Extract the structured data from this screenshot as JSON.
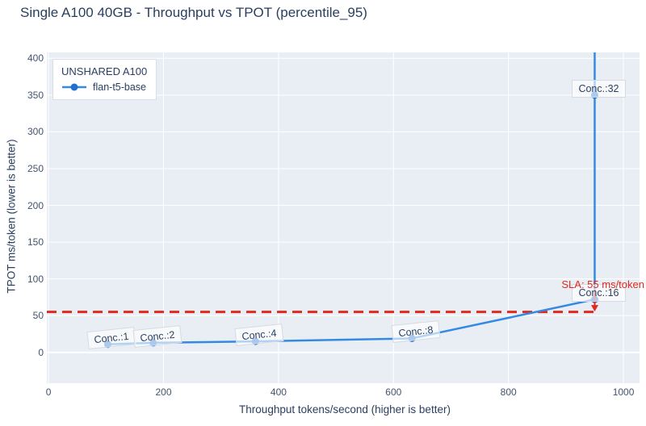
{
  "chart_data": {
    "type": "line",
    "title": "Single A100 40GB - Throughput vs TPOT (percentile_95)",
    "xlabel": "Throughput tokens/second (higher is better)",
    "ylabel": "TPOT ms/token (lower is better)",
    "xticks": [
      0,
      200,
      400,
      600,
      800,
      1000
    ],
    "yticks": [
      0,
      50,
      100,
      150,
      200,
      250,
      300,
      350,
      400
    ],
    "xlim": [
      -3,
      1028
    ],
    "ylim": [
      -42,
      408
    ],
    "grid": true,
    "legend": {
      "position": "top-left",
      "title": "UNSHARED A100",
      "items": [
        {
          "label": "flan-t5-base"
        }
      ]
    },
    "series": [
      {
        "name": "flan-t5-base",
        "points": [
          {
            "label": "Conc.:1",
            "concurrency": 1,
            "x": 103,
            "y": 11
          },
          {
            "label": "Conc.:2",
            "concurrency": 2,
            "x": 182,
            "y": 13
          },
          {
            "label": "Conc.:4",
            "concurrency": 4,
            "x": 360,
            "y": 15
          },
          {
            "label": "Conc.:8",
            "concurrency": 8,
            "x": 632,
            "y": 19
          },
          {
            "label": "Conc.:16",
            "concurrency": 16,
            "x": 950,
            "y": 72
          },
          {
            "label": "Conc.:32",
            "concurrency": 32,
            "x": 950,
            "y": 350
          }
        ],
        "continues_above_plot": true
      }
    ],
    "sla": {
      "label": "SLA: 55 ms/token",
      "value": 55,
      "x_start": -3,
      "x_end": 955,
      "arrow_x": 950
    },
    "colors": {
      "line": "#338ae3",
      "marker": "#2470cf",
      "sla": "#e02a1e",
      "plot_bg": "#e9eef5",
      "grid": "#ffffff",
      "text": "#2a3f5f",
      "annotation_border": "#d5dae3"
    }
  }
}
